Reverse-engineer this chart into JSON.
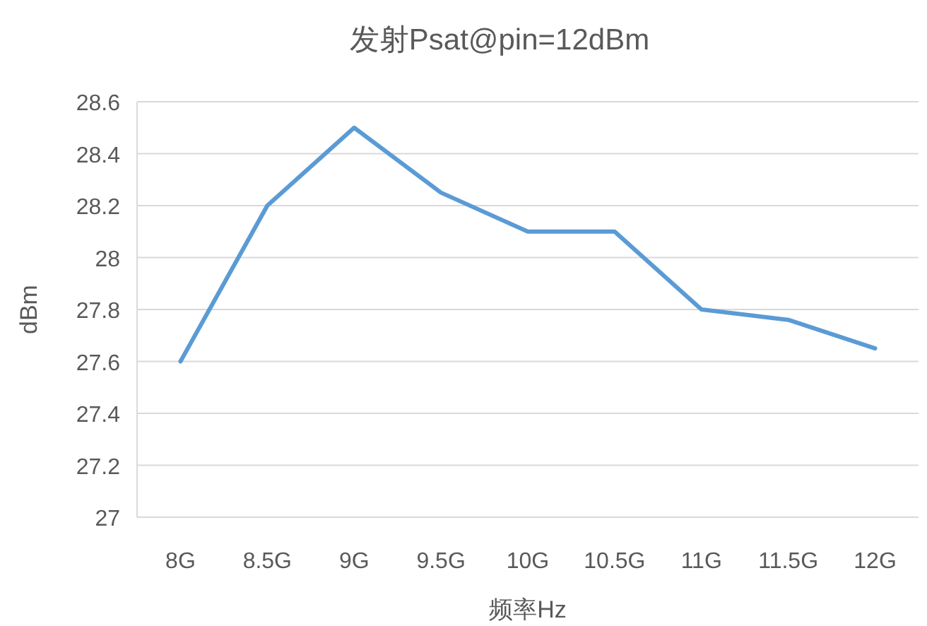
{
  "chart_data": {
    "type": "line",
    "title": "发射Psat@pin=12dBm",
    "xlabel": "频率Hz",
    "ylabel": "dBm",
    "categories": [
      "8G",
      "8.5G",
      "9G",
      "9.5G",
      "10G",
      "10.5G",
      "11G",
      "11.5G",
      "12G"
    ],
    "series": [
      {
        "color": "#5b9bd5",
        "values": [
          27.6,
          28.2,
          28.5,
          28.25,
          28.1,
          28.1,
          27.8,
          27.76,
          27.65
        ]
      }
    ],
    "ylim": [
      27,
      28.6
    ],
    "yticks": [
      27,
      27.2,
      27.4,
      27.6,
      27.8,
      28,
      28.2,
      28.4,
      28.6
    ],
    "grid": "y"
  }
}
